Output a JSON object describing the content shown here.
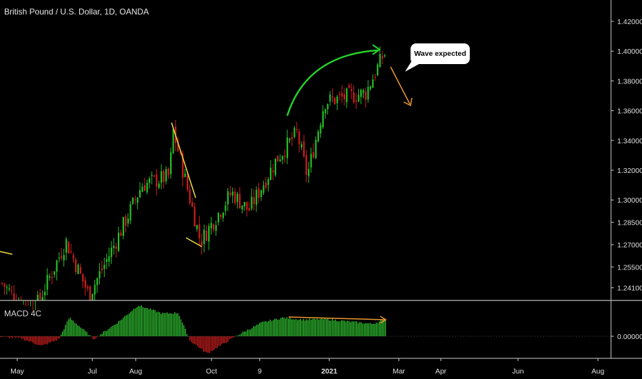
{
  "header": {
    "title": "British Pound / U.S. Dollar, 1D, OANDA"
  },
  "callout": {
    "text": "Wave expected"
  },
  "colors": {
    "up": "#26c226",
    "down": "#d21e1e",
    "background": "#000000",
    "hist_pos": "#2fbf2f",
    "hist_neg": "#c81e1e",
    "annotation_yellow": "#f0e040",
    "annotation_green": "#25d02a",
    "annotation_orange": "#f09a30"
  },
  "chart_data": [
    {
      "type": "candlestick",
      "title": "British Pound / U.S. Dollar, 1D, OANDA",
      "ylim": [
        1.235,
        1.432
      ],
      "y_ticks": [
        "1.42000",
        "1.40000",
        "1.38000",
        "1.36000",
        "1.34000",
        "1.32000",
        "1.30000",
        "1.28500",
        "1.27000",
        "1.25500",
        "1.24100"
      ],
      "x_ticks": [
        "May",
        "Jul",
        "Aug",
        "Oct",
        "9",
        "2021",
        "Mar",
        "Apr",
        "Jun",
        "Aug"
      ],
      "approx_close_path": [
        {
          "date": "Apr 29",
          "price": 1.245
        },
        {
          "date": "May 18",
          "price": 1.222
        },
        {
          "date": "Jun 10",
          "price": 1.272
        },
        {
          "date": "Jun 29",
          "price": 1.236
        },
        {
          "date": "Jul 20",
          "price": 1.27
        },
        {
          "date": "Aug 5",
          "price": 1.31
        },
        {
          "date": "Aug 28",
          "price": 1.316
        },
        {
          "date": "Sep 1",
          "price": 1.347
        },
        {
          "date": "Sep 23",
          "price": 1.272
        },
        {
          "date": "Oct 12",
          "price": 1.305
        },
        {
          "date": "Oct 30",
          "price": 1.293
        },
        {
          "date": "Nov 17",
          "price": 1.327
        },
        {
          "date": "Dec 4",
          "price": 1.345
        },
        {
          "date": "Dec 21",
          "price": 1.316
        },
        {
          "date": "Jan 6",
          "price": 1.366
        },
        {
          "date": "Jan 29",
          "price": 1.372
        },
        {
          "date": "Feb 19",
          "price": 1.398
        }
      ]
    },
    {
      "type": "bar",
      "title": "MACD 4C",
      "y_ticks": [
        "0.00000"
      ]
    }
  ],
  "annotations": [
    {
      "name": "yellow-divergence-left",
      "type": "line"
    },
    {
      "name": "yellow-divergence-high-low",
      "type": "line"
    },
    {
      "name": "green-curve-arrow",
      "type": "arrow"
    },
    {
      "name": "orange-down-arrow",
      "type": "arrow"
    },
    {
      "name": "orange-macd-line",
      "type": "arrow"
    }
  ]
}
